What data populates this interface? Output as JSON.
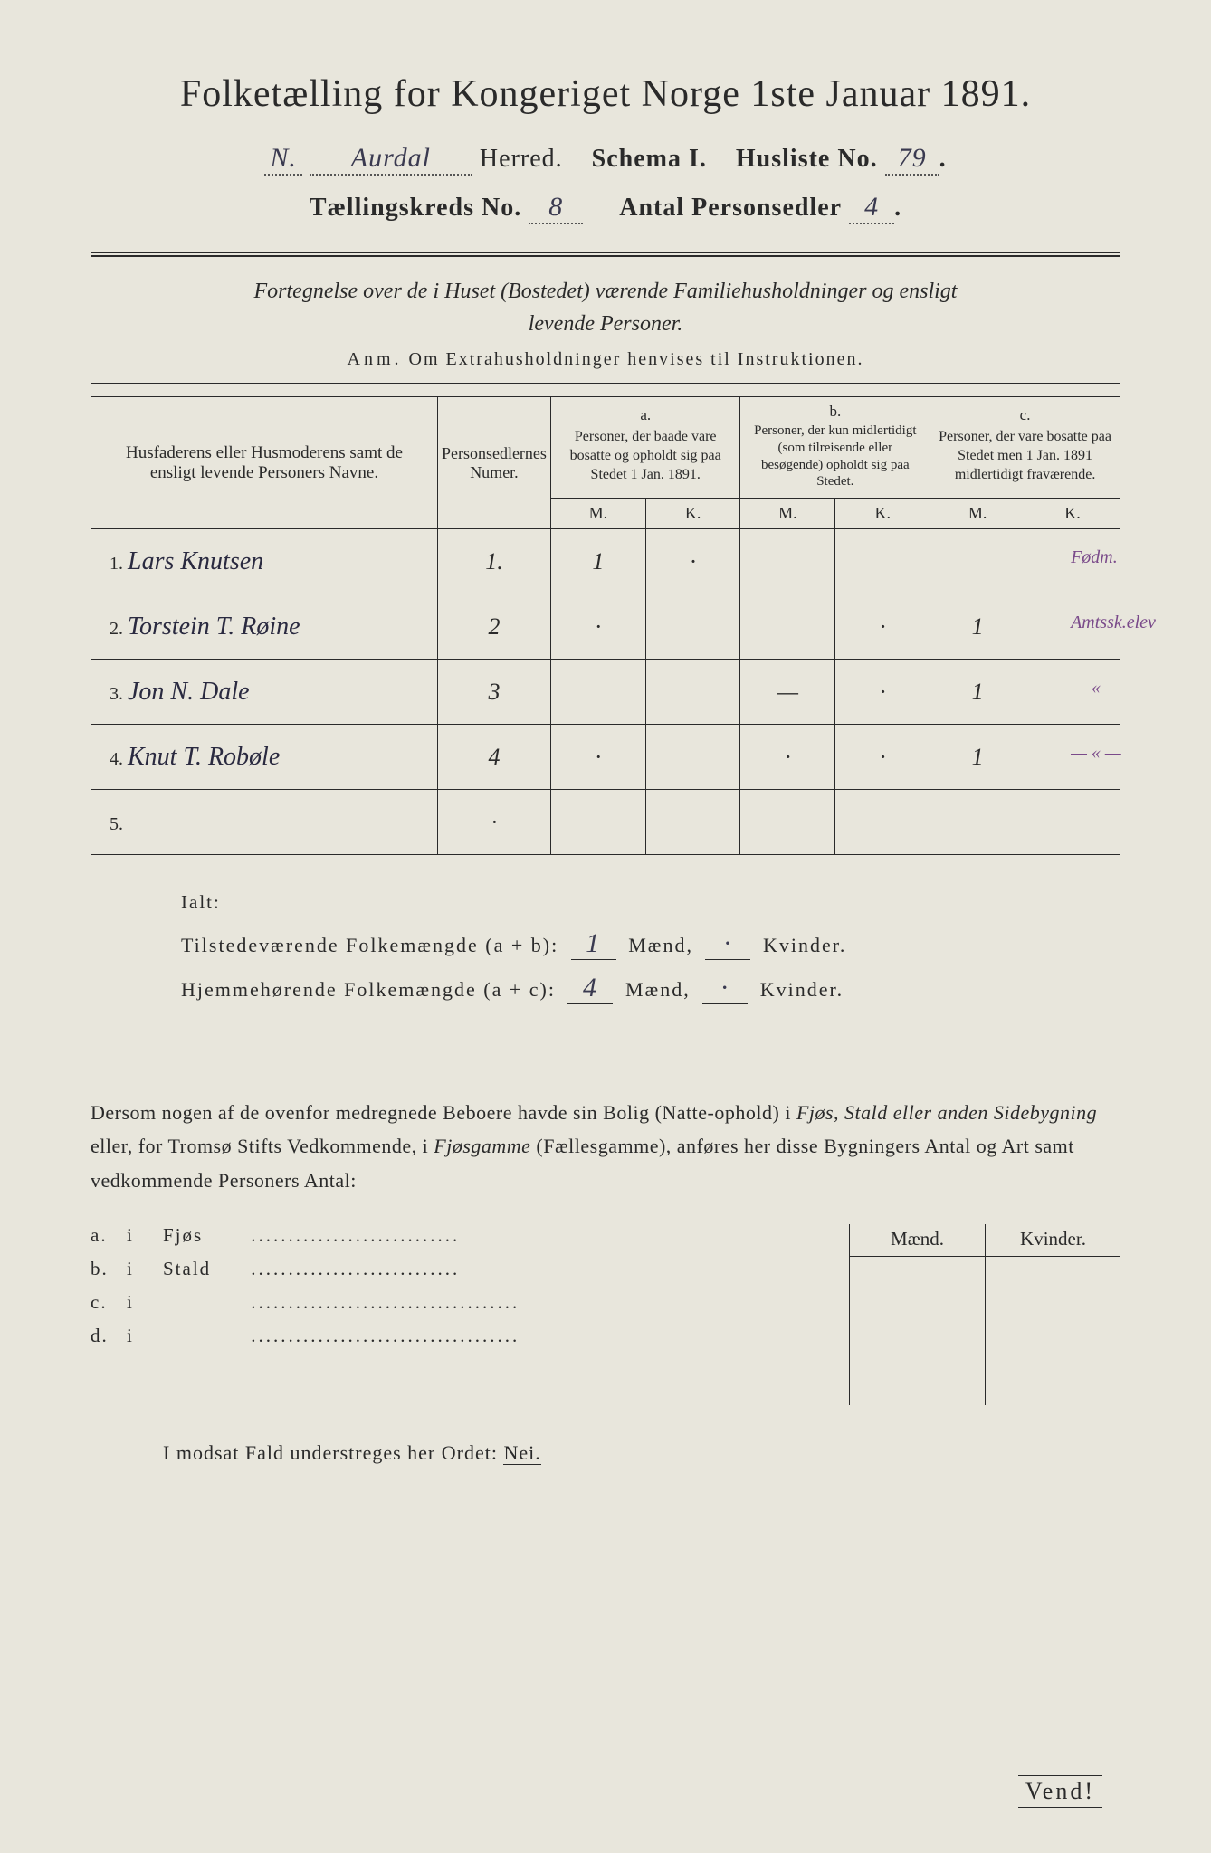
{
  "colors": {
    "background": "#e8e6dc",
    "ink": "#2a2a2a",
    "handwriting": "#3a3a50",
    "purple_annotation": "#7a4a8a"
  },
  "typography": {
    "title_fontsize": 42,
    "subtitle_fontsize": 28,
    "body_fontsize": 22,
    "table_fontsize": 18,
    "handwriting_fontsize": 28
  },
  "header": {
    "title": "Folketælling for Kongeriget Norge 1ste Januar 1891.",
    "herred_prefix": "N.",
    "herred_name": "Aurdal",
    "herred_label": "Herred.",
    "schema_label": "Schema I.",
    "husliste_label": "Husliste No.",
    "husliste_no": "79",
    "kreds_label": "Tællingskreds No.",
    "kreds_no": "8",
    "personsedler_label": "Antal Personsedler",
    "personsedler_no": "4"
  },
  "description": {
    "line1": "Fortegnelse over de i Huset (Bostedet) værende Familiehusholdninger og ensligt",
    "line2": "levende Personer.",
    "anm_label": "Anm.",
    "anm_text": "Om Extrahusholdninger henvises til Instruktionen."
  },
  "table": {
    "columns": {
      "name_header": "Husfaderens eller Husmoderens samt de ensligt levende Personers Navne.",
      "num_header": "Personsedlernes Numer.",
      "col_a_label": "a.",
      "col_a_text": "Personer, der baade vare bosatte og opholdt sig paa Stedet 1 Jan. 1891.",
      "col_b_label": "b.",
      "col_b_text": "Personer, der kun midlertidigt (som tilreisende eller besøgende) opholdt sig paa Stedet.",
      "col_c_label": "c.",
      "col_c_text": "Personer, der vare bosatte paa Stedet men 1 Jan. 1891 midlertidigt fraværende.",
      "m_label": "M.",
      "k_label": "K."
    },
    "rows": [
      {
        "num": "1.",
        "name": "Lars Knutsen",
        "pnum": "1.",
        "a_m": "1",
        "a_k": "·",
        "b_m": "",
        "b_k": "",
        "c_m": "",
        "c_k": "",
        "note": "Fødm."
      },
      {
        "num": "2.",
        "name": "Torstein T. Røine",
        "pnum": "2",
        "a_m": "·",
        "a_k": "",
        "b_m": "",
        "b_k": "·",
        "c_m": "1",
        "c_k": "",
        "note": "Amtssk.elev"
      },
      {
        "num": "3.",
        "name": "Jon N. Dale",
        "pnum": "3",
        "a_m": "",
        "a_k": "",
        "b_m": "—",
        "b_k": "·",
        "c_m": "1",
        "c_k": "",
        "note": "— « —"
      },
      {
        "num": "4.",
        "name": "Knut T. Robøle",
        "pnum": "4",
        "a_m": "·",
        "a_k": "",
        "b_m": "·",
        "b_k": "·",
        "c_m": "1",
        "c_k": "",
        "note": "— « —"
      },
      {
        "num": "5.",
        "name": "",
        "pnum": "·",
        "a_m": "",
        "a_k": "",
        "b_m": "",
        "b_k": "",
        "c_m": "",
        "c_k": "",
        "note": ""
      }
    ]
  },
  "tally": {
    "ialt_label": "Ialt:",
    "present_label": "Tilstedeværende Folkemængde (a + b):",
    "present_m": "1",
    "present_k": "·",
    "home_label": "Hjemmehørende Folkemængde (a + c):",
    "home_m": "4",
    "home_k": "·",
    "maend_label": "Mænd,",
    "kvinder_label": "Kvinder."
  },
  "note": {
    "text1": "Dersom nogen af de ovenfor medregnede Beboere havde sin Bolig (Natte-ophold) i",
    "ital1": "Fjøs, Stald eller anden Sidebygning",
    "text2": "eller, for Tromsø Stifts Vedkommende, i",
    "ital2": "Fjøsgamme",
    "text3": "(Fællesgamme), anføres her disse Bygningers Antal og Art samt vedkommende Personers Antal:"
  },
  "sidebygning": {
    "maend_label": "Mænd.",
    "kvinder_label": "Kvinder.",
    "entries": [
      {
        "letter": "a.",
        "i": "i",
        "label": "Fjøs"
      },
      {
        "letter": "b.",
        "i": "i",
        "label": "Stald"
      },
      {
        "letter": "c.",
        "i": "i",
        "label": ""
      },
      {
        "letter": "d.",
        "i": "i",
        "label": ""
      }
    ]
  },
  "footer": {
    "nei_line": "I modsat Fald understreges her Ordet:",
    "nei_word": "Nei.",
    "vend": "Vend!"
  }
}
